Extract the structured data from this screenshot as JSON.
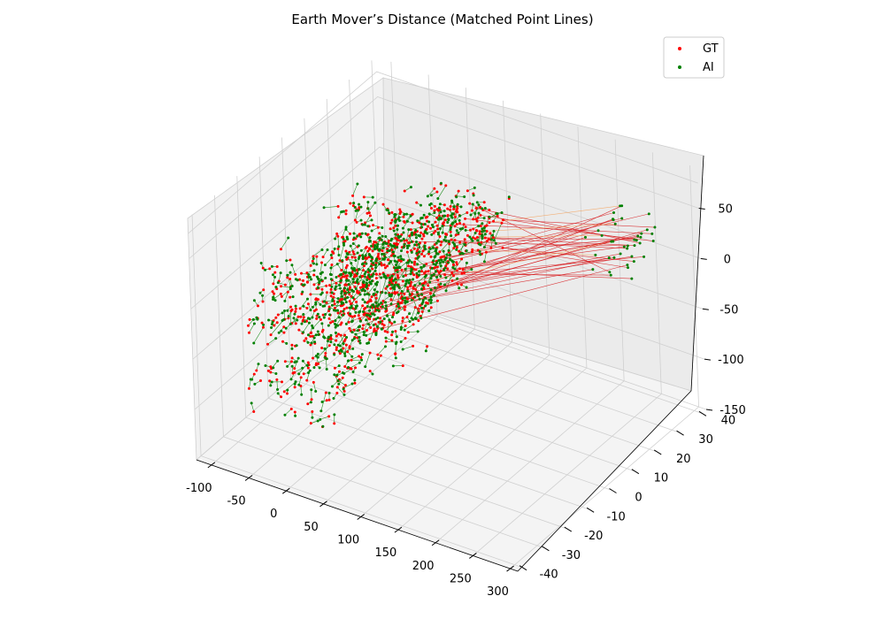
{
  "chart_data": {
    "type": "scatter",
    "projection": "3d",
    "title": "Earth Mover’s Distance (Matched Point Lines)",
    "xlabel": "",
    "ylabel": "",
    "zlabel": "",
    "xlim": [
      -120,
      310
    ],
    "ylim": [
      -42,
      42
    ],
    "zlim": [
      -150,
      90
    ],
    "x_ticks": [
      -100,
      -50,
      0,
      50,
      100,
      150,
      200,
      250,
      300
    ],
    "y_ticks": [
      -40,
      -30,
      -20,
      -10,
      0,
      10,
      20,
      30,
      40
    ],
    "z_ticks": [
      -150,
      -100,
      -50,
      0,
      50
    ],
    "grid": true,
    "legend_position": "top-right",
    "series": [
      {
        "name": "GT",
        "color": "#ff0000",
        "marker": "point"
      },
      {
        "name": "AI",
        "color": "#008000",
        "marker": "point"
      }
    ],
    "match_line_colors": [
      "#008000",
      "#f4a460",
      "#d7191c"
    ],
    "point_count_per_series": 900
  }
}
